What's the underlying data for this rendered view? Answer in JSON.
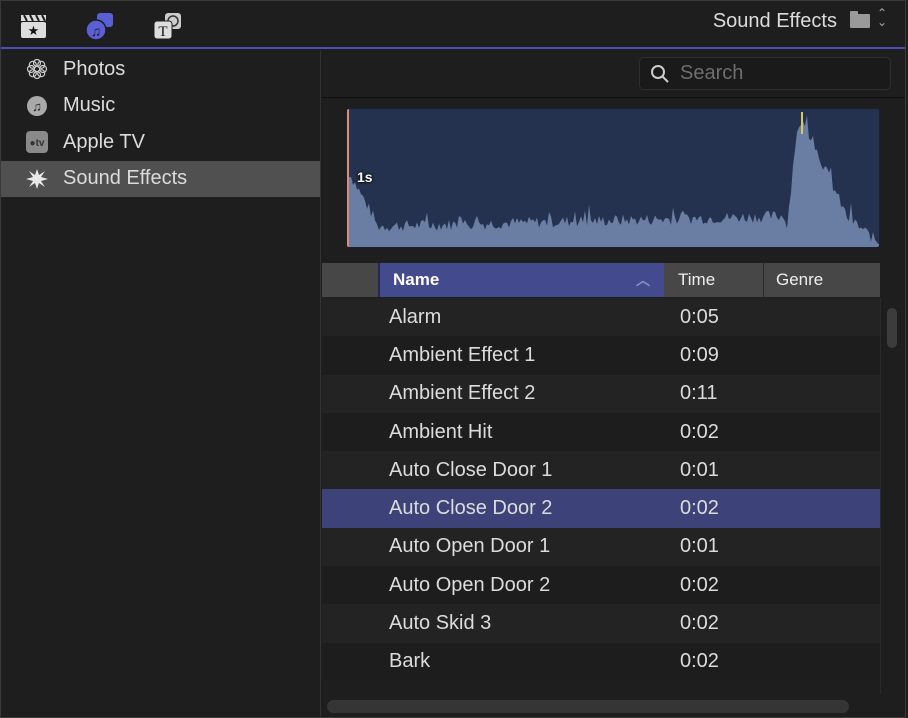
{
  "toolbar": {
    "icons": [
      "clapper-star-icon",
      "music-photo-icon",
      "titles-icon"
    ],
    "library_title": "Sound Effects",
    "accent": "#5b5fd6"
  },
  "sidebar": {
    "items": [
      {
        "label": "Photos",
        "icon": "photos-flower-icon"
      },
      {
        "label": "Music",
        "icon": "music-note-icon"
      },
      {
        "label": "Apple TV",
        "icon": "apple-tv-icon"
      },
      {
        "label": "Sound Effects",
        "icon": "starburst-icon",
        "selected": true
      }
    ]
  },
  "search": {
    "placeholder": "Search",
    "value": ""
  },
  "preview": {
    "duration_label": "1s"
  },
  "table": {
    "columns": [
      "Name",
      "Time",
      "Genre"
    ],
    "sort": "Name ascending",
    "rows": [
      {
        "name": "Alarm",
        "time": "0:05"
      },
      {
        "name": "Ambient Effect 1",
        "time": "0:09"
      },
      {
        "name": "Ambient Effect 2",
        "time": "0:11"
      },
      {
        "name": "Ambient Hit",
        "time": "0:02"
      },
      {
        "name": "Auto Close Door 1",
        "time": "0:01"
      },
      {
        "name": "Auto Close Door 2",
        "time": "0:02",
        "selected": true
      },
      {
        "name": "Auto Open Door 1",
        "time": "0:01"
      },
      {
        "name": "Auto Open Door 2",
        "time": "0:02"
      },
      {
        "name": "Auto Skid 3",
        "time": "0:02"
      },
      {
        "name": "Bark",
        "time": "0:02"
      }
    ]
  }
}
